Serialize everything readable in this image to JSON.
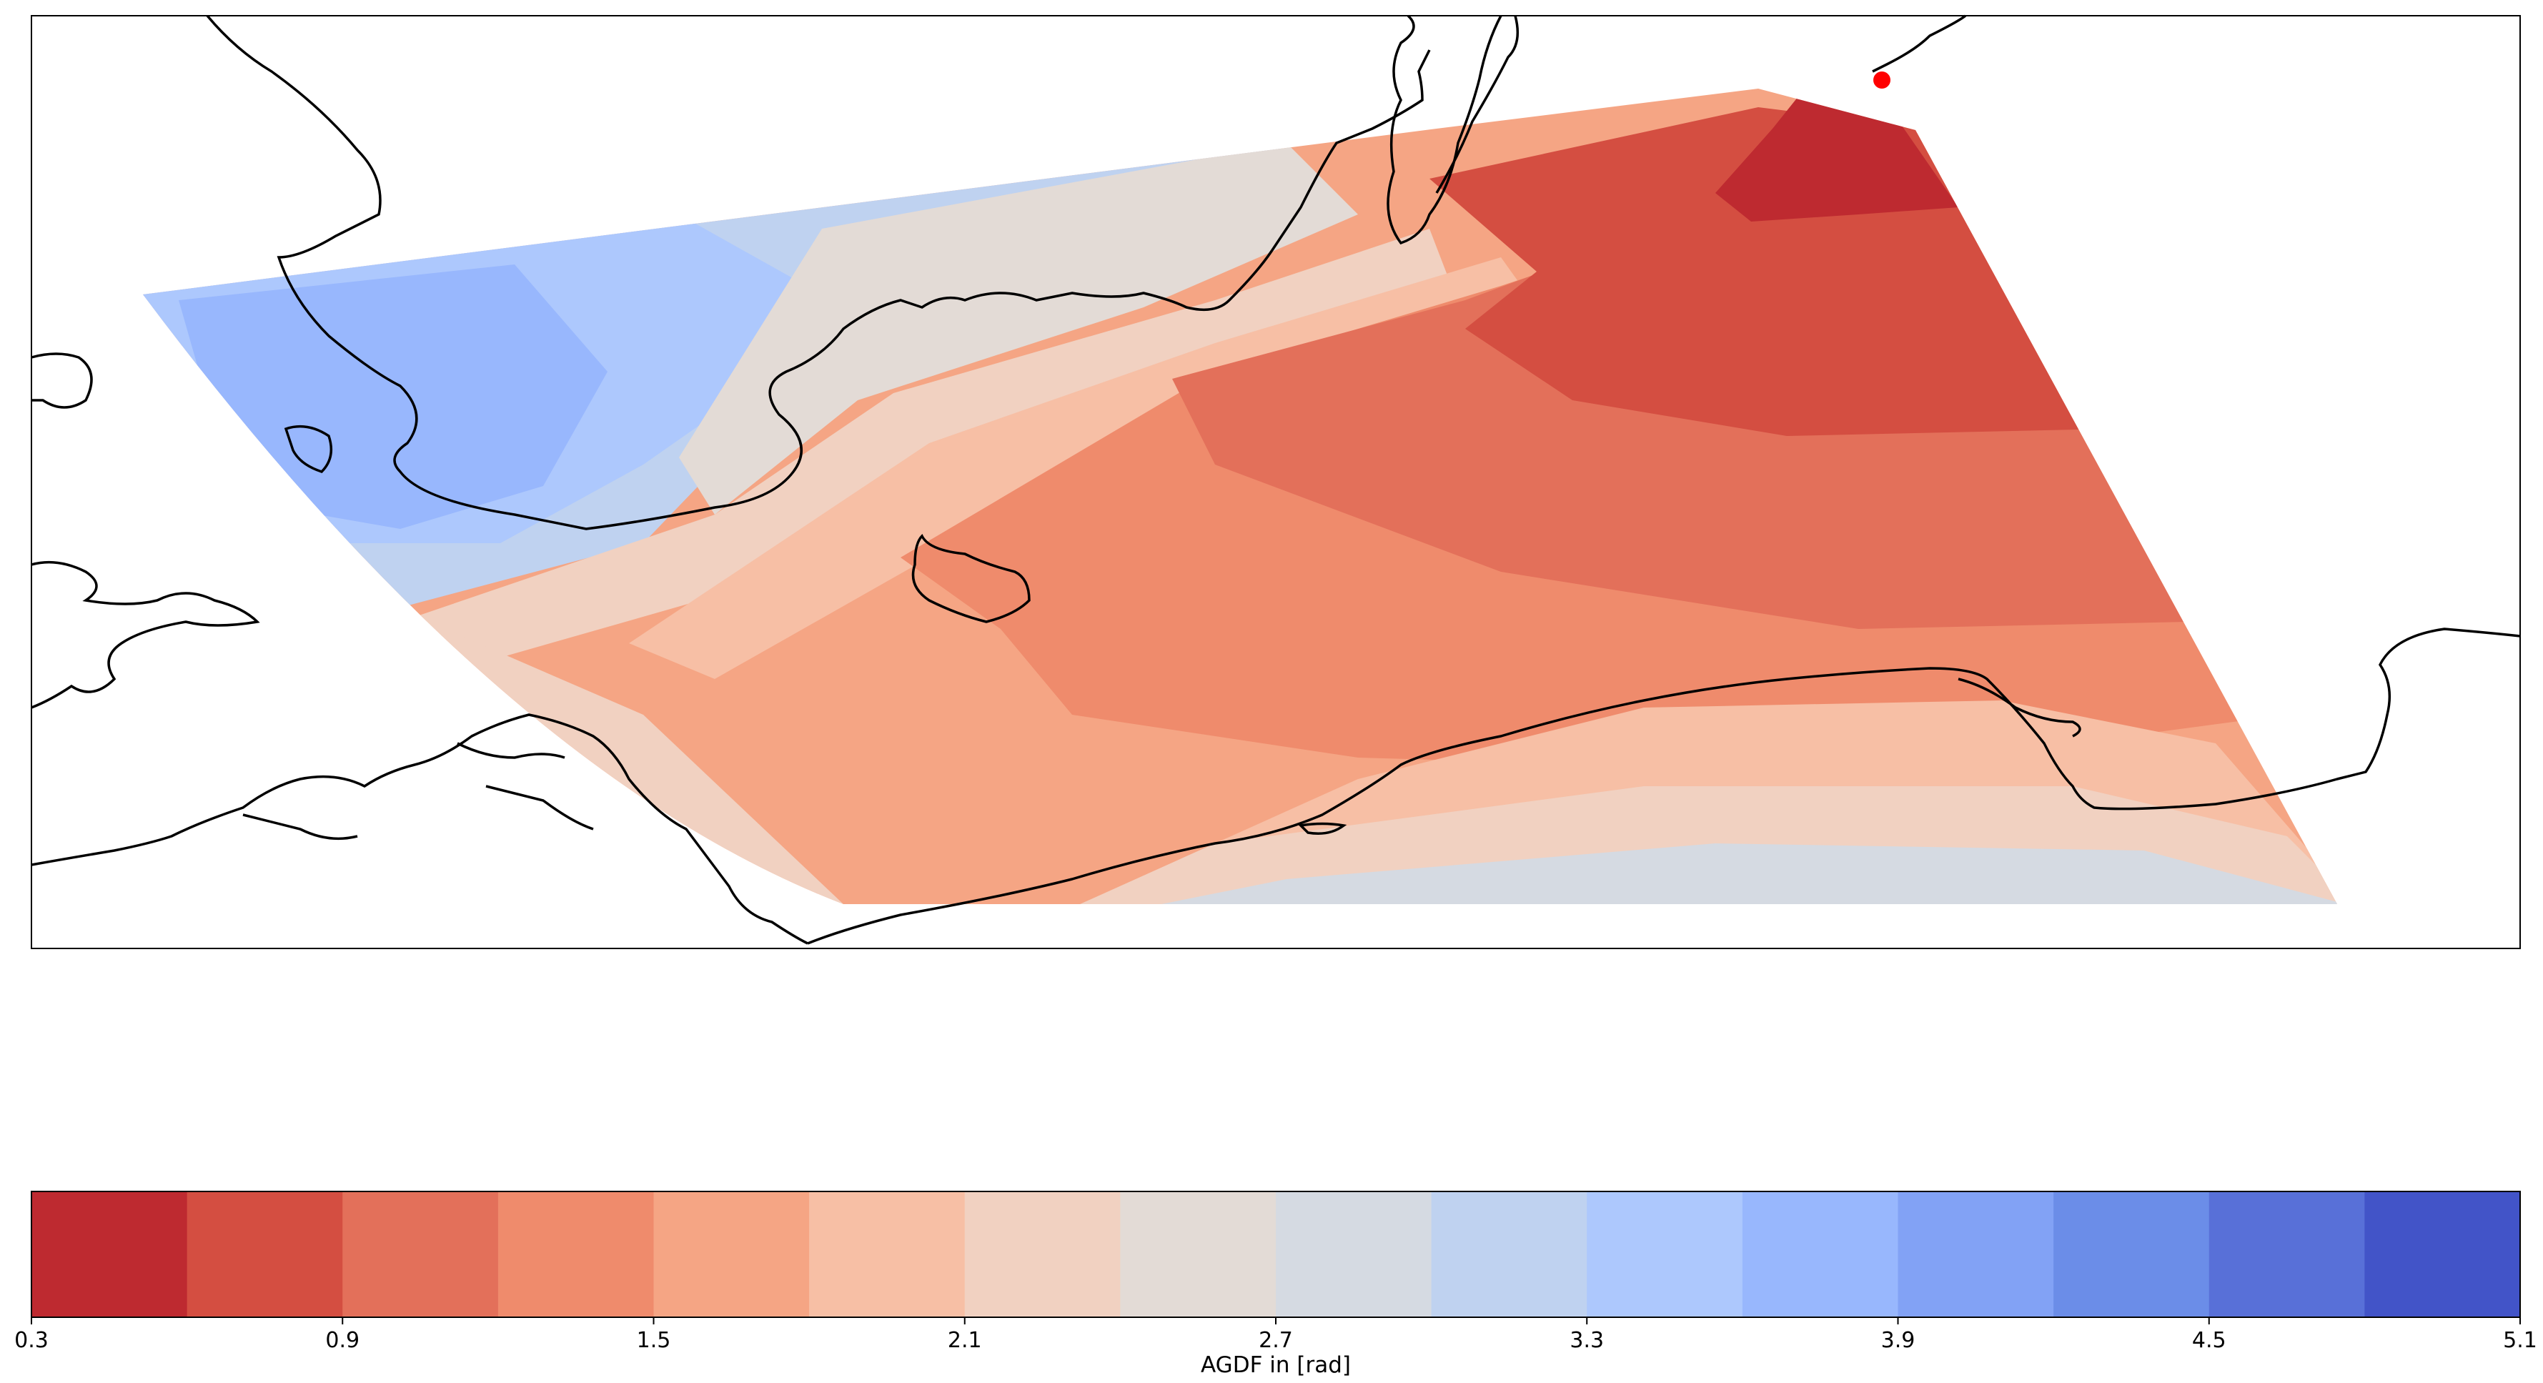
{
  "colorbar": {
    "label": "AGDF in [rad]",
    "ticks": [
      "0.3",
      "0.9",
      "1.5",
      "2.1",
      "2.7",
      "3.3",
      "3.9",
      "4.5",
      "5.1"
    ],
    "min": 0.3,
    "max": 5.1,
    "step": 0.3,
    "colors": [
      "#be2a30",
      "#d44e41",
      "#e3705a",
      "#ef8b6c",
      "#f5a584",
      "#f7bfa5",
      "#f1d1c1",
      "#e3dbd6",
      "#d5dae2",
      "#bfd2f0",
      "#adc8fd",
      "#98b7fd",
      "#82a2f5",
      "#6b8de8",
      "#5870d8",
      "#4254c8"
    ]
  },
  "map": {
    "marker_color": "#ff0000",
    "coastline_color": "#000000"
  }
}
